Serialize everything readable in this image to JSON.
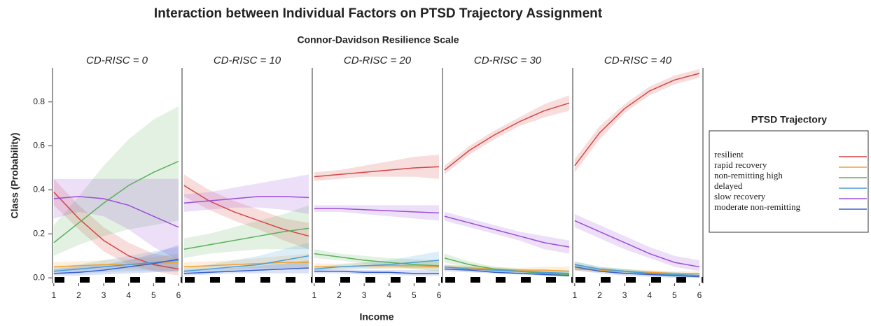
{
  "title": "Interaction between Individual Factors on PTSD Trajectory Assignment",
  "subtitle": "Connor-Davidson Resilience Scale",
  "x_label": "Income",
  "y_label": "Class (Probability)",
  "legend_title": "PTSD Trajectory",
  "series": [
    {
      "name": "resilient",
      "color": "#d64545"
    },
    {
      "name": "rapid recovery",
      "color": "#f0a030"
    },
    {
      "name": "non-remitting high",
      "color": "#5cb05c"
    },
    {
      "name": "delayed",
      "color": "#4a9fd8"
    },
    {
      "name": "slow recovery",
      "color": "#9b4fd8"
    },
    {
      "name": "moderate non-remitting",
      "color": "#3a5fcc"
    }
  ],
  "chart_data": [
    {
      "type": "line",
      "title": "CD-RISC = 0",
      "x": [
        1,
        2,
        3,
        4,
        5,
        6
      ],
      "xlim": [
        0.92,
        6.14
      ],
      "xticks": [
        1,
        2,
        3,
        4,
        5,
        6
      ],
      "ylim": [
        -0.025,
        0.955
      ],
      "yticks": [
        {
          "value": 0,
          "label": "0.0"
        },
        0.2,
        0.4,
        0.6,
        0.8
      ],
      "series": [
        {
          "values": [
            0.39,
            0.27,
            0.17,
            0.1,
            0.06,
            0.04
          ],
          "lower": [
            0.33,
            0.22,
            0.12,
            0.06,
            0.03,
            0.01
          ],
          "upper": [
            0.45,
            0.33,
            0.23,
            0.16,
            0.11,
            0.09
          ]
        },
        {
          "values": [
            0.05,
            0.055,
            0.06,
            0.06,
            0.065,
            0.07
          ],
          "lower": [
            0.03,
            0.035,
            0.04,
            0.04,
            0.035,
            0.03
          ],
          "upper": [
            0.07,
            0.075,
            0.08,
            0.085,
            0.095,
            0.11
          ]
        },
        {
          "values": [
            0.16,
            0.25,
            0.34,
            0.42,
            0.48,
            0.53
          ],
          "lower": [
            0.1,
            0.15,
            0.19,
            0.22,
            0.24,
            0.26
          ],
          "upper": [
            0.24,
            0.37,
            0.51,
            0.63,
            0.72,
            0.78
          ]
        },
        {
          "values": [
            0.03,
            0.04,
            0.05,
            0.06,
            0.07,
            0.08
          ],
          "lower": [
            0.015,
            0.02,
            0.025,
            0.03,
            0.03,
            0.03
          ],
          "upper": [
            0.05,
            0.06,
            0.08,
            0.1,
            0.12,
            0.14
          ]
        },
        {
          "values": [
            0.36,
            0.37,
            0.36,
            0.33,
            0.28,
            0.23
          ],
          "lower": [
            0.27,
            0.3,
            0.28,
            0.22,
            0.14,
            0.08
          ],
          "upper": [
            0.45,
            0.45,
            0.45,
            0.45,
            0.45,
            0.45
          ]
        },
        {
          "values": [
            0.02,
            0.025,
            0.035,
            0.05,
            0.065,
            0.085
          ],
          "lower": [
            0.01,
            0.01,
            0.015,
            0.02,
            0.025,
            0.03
          ],
          "upper": [
            0.04,
            0.05,
            0.06,
            0.08,
            0.11,
            0.15
          ]
        }
      ]
    },
    {
      "type": "line",
      "title": "CD-RISC = 10",
      "x": [
        1,
        2,
        3,
        4,
        5,
        6
      ],
      "xlim": [
        0.92,
        6.14
      ],
      "ylim": [
        -0.025,
        0.955
      ],
      "series": [
        {
          "values": [
            0.42,
            0.35,
            0.3,
            0.26,
            0.22,
            0.19
          ],
          "lower": [
            0.37,
            0.31,
            0.26,
            0.22,
            0.17,
            0.13
          ],
          "upper": [
            0.47,
            0.4,
            0.35,
            0.31,
            0.27,
            0.25
          ]
        },
        {
          "values": [
            0.05,
            0.055,
            0.06,
            0.065,
            0.07,
            0.07
          ],
          "lower": [
            0.03,
            0.04,
            0.04,
            0.045,
            0.045,
            0.04
          ],
          "upper": [
            0.07,
            0.075,
            0.08,
            0.09,
            0.1,
            0.11
          ]
        },
        {
          "values": [
            0.13,
            0.15,
            0.17,
            0.19,
            0.21,
            0.225
          ],
          "lower": [
            0.09,
            0.11,
            0.12,
            0.13,
            0.13,
            0.13
          ],
          "upper": [
            0.18,
            0.2,
            0.23,
            0.26,
            0.29,
            0.33
          ]
        },
        {
          "values": [
            0.03,
            0.04,
            0.05,
            0.06,
            0.08,
            0.1
          ],
          "lower": [
            0.02,
            0.025,
            0.03,
            0.035,
            0.04,
            0.05
          ],
          "upper": [
            0.045,
            0.06,
            0.08,
            0.1,
            0.13,
            0.16
          ]
        },
        {
          "values": [
            0.34,
            0.35,
            0.36,
            0.37,
            0.37,
            0.365
          ],
          "lower": [
            0.3,
            0.31,
            0.32,
            0.32,
            0.31,
            0.29
          ],
          "upper": [
            0.38,
            0.39,
            0.41,
            0.43,
            0.45,
            0.47
          ]
        },
        {
          "values": [
            0.02,
            0.025,
            0.03,
            0.035,
            0.04,
            0.045
          ],
          "lower": [
            0.01,
            0.015,
            0.02,
            0.02,
            0.02,
            0.02
          ],
          "upper": [
            0.035,
            0.04,
            0.045,
            0.055,
            0.065,
            0.08
          ]
        }
      ]
    },
    {
      "type": "line",
      "title": "CD-RISC = 20",
      "x": [
        1,
        2,
        3,
        4,
        5,
        6
      ],
      "xlim": [
        0.92,
        6.14
      ],
      "xticks": [
        1,
        2,
        3,
        4,
        5,
        6
      ],
      "ylim": [
        -0.025,
        0.955
      ],
      "series": [
        {
          "values": [
            0.46,
            0.47,
            0.48,
            0.49,
            0.5,
            0.505
          ],
          "lower": [
            0.44,
            0.45,
            0.46,
            0.46,
            0.46,
            0.45
          ],
          "upper": [
            0.48,
            0.49,
            0.51,
            0.53,
            0.55,
            0.56
          ]
        },
        {
          "values": [
            0.05,
            0.05,
            0.055,
            0.055,
            0.055,
            0.05
          ],
          "lower": [
            0.04,
            0.04,
            0.045,
            0.04,
            0.04,
            0.035
          ],
          "upper": [
            0.065,
            0.065,
            0.07,
            0.07,
            0.075,
            0.075
          ]
        },
        {
          "values": [
            0.11,
            0.095,
            0.08,
            0.07,
            0.06,
            0.055
          ],
          "lower": [
            0.09,
            0.08,
            0.065,
            0.055,
            0.04,
            0.03
          ],
          "upper": [
            0.13,
            0.11,
            0.1,
            0.09,
            0.085,
            0.08
          ]
        },
        {
          "values": [
            0.04,
            0.05,
            0.055,
            0.06,
            0.07,
            0.08
          ],
          "lower": [
            0.03,
            0.04,
            0.04,
            0.045,
            0.045,
            0.045
          ],
          "upper": [
            0.05,
            0.06,
            0.07,
            0.08,
            0.1,
            0.12
          ]
        },
        {
          "values": [
            0.315,
            0.315,
            0.31,
            0.305,
            0.3,
            0.295
          ],
          "lower": [
            0.3,
            0.3,
            0.29,
            0.28,
            0.27,
            0.26
          ],
          "upper": [
            0.33,
            0.33,
            0.33,
            0.33,
            0.33,
            0.33
          ]
        },
        {
          "values": [
            0.03,
            0.03,
            0.025,
            0.025,
            0.02,
            0.02
          ],
          "lower": [
            0.02,
            0.02,
            0.015,
            0.015,
            0.01,
            0.01
          ],
          "upper": [
            0.04,
            0.04,
            0.035,
            0.035,
            0.035,
            0.035
          ]
        }
      ]
    },
    {
      "type": "line",
      "title": "CD-RISC = 30",
      "x": [
        1,
        2,
        3,
        4,
        5,
        6
      ],
      "xlim": [
        0.92,
        6.14
      ],
      "ylim": [
        -0.025,
        0.955
      ],
      "series": [
        {
          "values": [
            0.49,
            0.58,
            0.65,
            0.71,
            0.76,
            0.795
          ],
          "lower": [
            0.47,
            0.56,
            0.63,
            0.69,
            0.73,
            0.76
          ],
          "upper": [
            0.51,
            0.6,
            0.67,
            0.73,
            0.79,
            0.83
          ]
        },
        {
          "values": [
            0.05,
            0.045,
            0.04,
            0.035,
            0.035,
            0.03
          ],
          "lower": [
            0.04,
            0.035,
            0.03,
            0.025,
            0.02,
            0.02
          ],
          "upper": [
            0.06,
            0.055,
            0.05,
            0.045,
            0.05,
            0.05
          ]
        },
        {
          "values": [
            0.09,
            0.06,
            0.04,
            0.03,
            0.02,
            0.015
          ],
          "lower": [
            0.07,
            0.045,
            0.03,
            0.02,
            0.01,
            0.005
          ],
          "upper": [
            0.11,
            0.075,
            0.05,
            0.04,
            0.03,
            0.03
          ]
        },
        {
          "values": [
            0.05,
            0.04,
            0.035,
            0.03,
            0.025,
            0.02
          ],
          "lower": [
            0.04,
            0.03,
            0.025,
            0.02,
            0.015,
            0.01
          ],
          "upper": [
            0.06,
            0.05,
            0.045,
            0.04,
            0.035,
            0.035
          ]
        },
        {
          "values": [
            0.28,
            0.25,
            0.22,
            0.19,
            0.16,
            0.14
          ],
          "lower": [
            0.26,
            0.23,
            0.2,
            0.17,
            0.13,
            0.11
          ],
          "upper": [
            0.3,
            0.27,
            0.24,
            0.21,
            0.19,
            0.17
          ]
        },
        {
          "values": [
            0.04,
            0.035,
            0.025,
            0.02,
            0.015,
            0.01
          ],
          "lower": [
            0.03,
            0.025,
            0.02,
            0.015,
            0.01,
            0.005
          ],
          "upper": [
            0.05,
            0.045,
            0.035,
            0.03,
            0.025,
            0.02
          ]
        }
      ]
    },
    {
      "type": "line",
      "title": "CD-RISC = 40",
      "x": [
        1,
        2,
        3,
        4,
        5,
        6
      ],
      "xlim": [
        0.92,
        6.14
      ],
      "xticks": [
        1,
        2,
        3,
        4,
        5,
        6
      ],
      "ylim": [
        -0.025,
        0.955
      ],
      "series": [
        {
          "values": [
            0.51,
            0.66,
            0.77,
            0.85,
            0.9,
            0.93
          ],
          "lower": [
            0.48,
            0.63,
            0.75,
            0.83,
            0.88,
            0.91
          ],
          "upper": [
            0.54,
            0.69,
            0.79,
            0.87,
            0.92,
            0.95
          ]
        },
        {
          "values": [
            0.04,
            0.035,
            0.03,
            0.025,
            0.02,
            0.02
          ],
          "lower": [
            0.03,
            0.025,
            0.02,
            0.015,
            0.01,
            0.01
          ],
          "upper": [
            0.05,
            0.045,
            0.04,
            0.035,
            0.03,
            0.03
          ]
        },
        {
          "values": [
            0.06,
            0.04,
            0.03,
            0.02,
            0.015,
            0.01
          ],
          "lower": [
            0.045,
            0.03,
            0.02,
            0.01,
            0.005,
            0.005
          ],
          "upper": [
            0.075,
            0.05,
            0.04,
            0.03,
            0.025,
            0.02
          ]
        },
        {
          "values": [
            0.06,
            0.04,
            0.03,
            0.02,
            0.015,
            0.01
          ],
          "lower": [
            0.045,
            0.03,
            0.02,
            0.01,
            0.005,
            0.005
          ],
          "upper": [
            0.075,
            0.05,
            0.04,
            0.03,
            0.025,
            0.02
          ]
        },
        {
          "values": [
            0.26,
            0.21,
            0.16,
            0.11,
            0.07,
            0.05
          ],
          "lower": [
            0.23,
            0.18,
            0.13,
            0.09,
            0.05,
            0.03
          ],
          "upper": [
            0.29,
            0.24,
            0.19,
            0.14,
            0.1,
            0.08
          ]
        },
        {
          "values": [
            0.05,
            0.03,
            0.02,
            0.015,
            0.01,
            0.005
          ],
          "lower": [
            0.035,
            0.02,
            0.01,
            0.005,
            0,
            0
          ],
          "upper": [
            0.065,
            0.04,
            0.03,
            0.025,
            0.02,
            0.015
          ]
        }
      ]
    }
  ]
}
